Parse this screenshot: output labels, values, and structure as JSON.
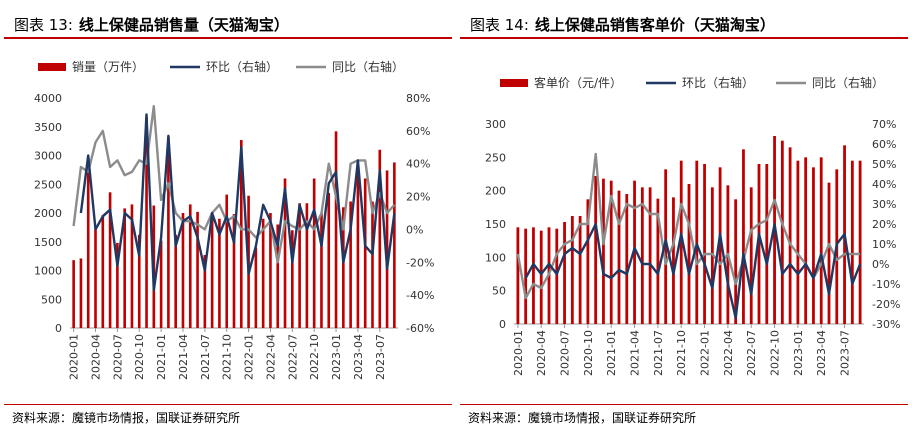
{
  "chart_data": [
    {
      "type": "bar",
      "fig_label": "图表 13:",
      "title": "线上保健品销售量（天猫淘宝）",
      "source": "资料来源：魔镜市场情报，国联证券研究所",
      "legend": [
        "销量（万件）",
        "环比（右轴）",
        "同比（右轴）"
      ],
      "colors": {
        "bar": "#c00000",
        "mom": "#1f3864",
        "yoy": "#8c8c8c"
      },
      "ylim": [
        0,
        4000
      ],
      "yticks": [
        "0",
        "500",
        "1000",
        "1500",
        "2000",
        "2500",
        "3000",
        "3500",
        "4000"
      ],
      "y2lim": [
        -60,
        80
      ],
      "y2ticks": [
        "-60%",
        "-40%",
        "-20%",
        "0%",
        "20%",
        "40%",
        "60%",
        "80%"
      ],
      "xticks": [
        "2020-01",
        "2020-04",
        "2020-07",
        "2020-10",
        "2021-01",
        "2021-04",
        "2021-07",
        "2021-10",
        "2022-01",
        "2022-04",
        "2022-07",
        "2022-10",
        "2023-01",
        "2023-04",
        "2023-07"
      ],
      "categories": [
        "2020-01",
        "2020-02",
        "2020-03",
        "2020-04",
        "2020-05",
        "2020-06",
        "2020-07",
        "2020-08",
        "2020-09",
        "2020-10",
        "2020-11",
        "2020-12",
        "2021-01",
        "2021-02",
        "2021-03",
        "2021-04",
        "2021-05",
        "2021-06",
        "2021-07",
        "2021-08",
        "2021-09",
        "2021-10",
        "2021-11",
        "2021-12",
        "2022-01",
        "2022-02",
        "2022-03",
        "2022-04",
        "2022-05",
        "2022-06",
        "2022-07",
        "2022-08",
        "2022-09",
        "2022-10",
        "2022-11",
        "2022-12",
        "2023-01",
        "2023-02",
        "2023-03",
        "2023-04",
        "2023-05",
        "2023-06",
        "2023-07",
        "2023-08",
        "2023-09"
      ],
      "series": [
        {
          "name": "销量（万件）",
          "axis": "left",
          "kind": "bar",
          "values": [
            1180,
            1210,
            2980,
            1720,
            1960,
            2360,
            1480,
            2080,
            2150,
            1620,
            3670,
            2130,
            1520,
            3320,
            1620,
            2000,
            2150,
            2020,
            1270,
            2000,
            1900,
            2320,
            1980,
            3270,
            2300,
            1400,
            1900,
            2000,
            1800,
            2600,
            1700,
            2170,
            2170,
            2600,
            2000,
            2350,
            3420,
            2100,
            2200,
            2840,
            2600,
            2200,
            3100,
            2740,
            2880
          ]
        },
        {
          "name": "环比（右轴）",
          "axis": "right",
          "kind": "line",
          "values": [
            null,
            10,
            45,
            0,
            8,
            12,
            -22,
            10,
            6,
            -16,
            70,
            -37,
            -5,
            57,
            -10,
            5,
            8,
            -5,
            -25,
            10,
            -3,
            8,
            -8,
            50,
            -27,
            -10,
            15,
            5,
            -10,
            25,
            -20,
            15,
            0,
            12,
            -10,
            28,
            35,
            -20,
            0,
            42,
            -10,
            -15,
            36,
            -24,
            10
          ]
        },
        {
          "name": "同比（右轴）",
          "axis": "right",
          "kind": "line",
          "values": [
            2,
            38,
            35,
            53,
            60,
            38,
            42,
            33,
            35,
            42,
            40,
            75,
            18,
            28,
            10,
            5,
            5,
            3,
            0,
            10,
            15,
            5,
            8,
            0,
            0,
            -5,
            0,
            5,
            -20,
            5,
            2,
            0,
            5,
            0,
            10,
            40,
            20,
            0,
            40,
            42,
            42,
            10,
            22,
            10,
            15
          ]
        }
      ]
    },
    {
      "type": "bar",
      "fig_label": "图表 14:",
      "title": "线上保健品销售客单价（天猫淘宝）",
      "source": "资料来源：魔镜市场情报，国联证券研究所",
      "legend": [
        "客单价（元/件）",
        "环比（右轴）",
        "同比（右轴）"
      ],
      "colors": {
        "bar": "#c00000",
        "mom": "#1f3864",
        "yoy": "#8c8c8c"
      },
      "ylim": [
        0,
        300
      ],
      "yticks": [
        "0",
        "50",
        "100",
        "150",
        "200",
        "250",
        "300"
      ],
      "y2lim": [
        -30,
        70
      ],
      "y2ticks": [
        "-30%",
        "-20%",
        "-10%",
        "0%",
        "10%",
        "20%",
        "30%",
        "40%",
        "50%",
        "60%",
        "70%"
      ],
      "xticks": [
        "2020-01",
        "2020-04",
        "2020-07",
        "2020-10",
        "2021-01",
        "2021-04",
        "2021-07",
        "2021-10",
        "2022-01",
        "2022-04",
        "2022-07",
        "2022-10",
        "2023-01",
        "2023-04",
        "2023-07"
      ],
      "categories": [
        "2020-01",
        "2020-02",
        "2020-03",
        "2020-04",
        "2020-05",
        "2020-06",
        "2020-07",
        "2020-08",
        "2020-09",
        "2020-10",
        "2020-11",
        "2020-12",
        "2021-01",
        "2021-02",
        "2021-03",
        "2021-04",
        "2021-05",
        "2021-06",
        "2021-07",
        "2021-08",
        "2021-09",
        "2021-10",
        "2021-11",
        "2021-12",
        "2022-01",
        "2022-02",
        "2022-03",
        "2022-04",
        "2022-05",
        "2022-06",
        "2022-07",
        "2022-08",
        "2022-09",
        "2022-10",
        "2022-11",
        "2022-12",
        "2023-01",
        "2023-02",
        "2023-03",
        "2023-04",
        "2023-05",
        "2023-06",
        "2023-07",
        "2023-08",
        "2023-09"
      ],
      "series": [
        {
          "name": "客单价（元/件）",
          "axis": "left",
          "kind": "bar",
          "values": [
            145,
            143,
            145,
            140,
            145,
            143,
            153,
            162,
            162,
            187,
            222,
            218,
            215,
            200,
            195,
            215,
            205,
            205,
            188,
            232,
            190,
            245,
            210,
            245,
            240,
            205,
            235,
            208,
            187,
            262,
            205,
            240,
            240,
            282,
            275,
            265,
            245,
            250,
            235,
            250,
            212,
            232,
            268,
            245,
            245
          ]
        },
        {
          "name": "环比（右轴）",
          "axis": "right",
          "kind": "line",
          "values": [
            null,
            -7,
            0,
            -5,
            0,
            -5,
            5,
            8,
            5,
            12,
            20,
            -5,
            -7,
            -3,
            -5,
            8,
            0,
            0,
            -5,
            12,
            -5,
            15,
            -5,
            10,
            0,
            -12,
            15,
            -10,
            -27,
            5,
            -15,
            15,
            0,
            20,
            -5,
            0,
            -5,
            0,
            -7,
            5,
            -15,
            10,
            15,
            -10,
            0
          ]
        },
        {
          "name": "同比（右轴）",
          "axis": "right",
          "kind": "line",
          "values": [
            5,
            -17,
            -10,
            -12,
            -5,
            5,
            10,
            12,
            20,
            20,
            55,
            10,
            34,
            20,
            30,
            28,
            30,
            25,
            25,
            0,
            10,
            30,
            20,
            0,
            5,
            5,
            0,
            5,
            -10,
            2,
            17,
            20,
            22,
            32,
            20,
            10,
            5,
            0,
            -7,
            0,
            10,
            2,
            5,
            5,
            5
          ]
        }
      ]
    }
  ]
}
